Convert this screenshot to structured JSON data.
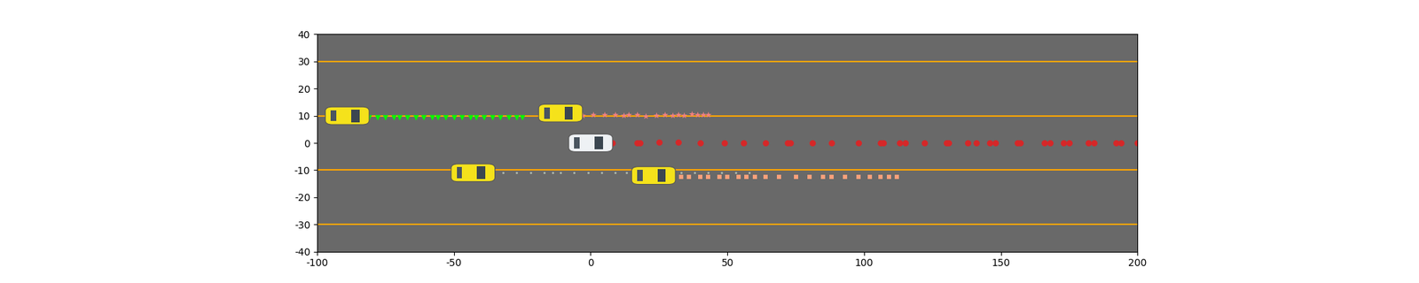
{
  "chart_data": {
    "type": "scatter",
    "xlim": [
      -100,
      200
    ],
    "ylim": [
      -40,
      40
    ],
    "xticks": [
      -100,
      -50,
      0,
      50,
      100,
      150,
      200
    ],
    "yticks": [
      -40,
      -30,
      -20,
      -10,
      0,
      10,
      20,
      30,
      40
    ],
    "lane_lines": [
      30,
      10,
      -10,
      -30
    ],
    "vehicles": [
      {
        "x": -89,
        "y": 10,
        "color": "#f5e21b"
      },
      {
        "x": -11,
        "y": 11,
        "color": "#f5e21b"
      },
      {
        "x": -43,
        "y": -11,
        "color": "#f5e21b"
      },
      {
        "x": 23,
        "y": -12,
        "color": "#f5e21b"
      },
      {
        "x": 0,
        "y": 0,
        "color": "#eef1f4"
      }
    ],
    "series": [
      {
        "color": "#00ff00",
        "marker": "v",
        "x": [
          -81,
          -78,
          -75,
          -72,
          -70,
          -67,
          -64,
          -61,
          -58,
          -56,
          -53,
          -50,
          -47,
          -44,
          -42,
          -39,
          -36,
          -33,
          -30,
          -27,
          -25
        ],
        "values": [
          9.5,
          9.5,
          9.5,
          9.5,
          9.5,
          9.5,
          9.5,
          9.5,
          9.5,
          9.5,
          9.5,
          9.5,
          9.5,
          9.5,
          9.5,
          9.5,
          9.5,
          9.5,
          9.5,
          9.5,
          9.5
        ]
      },
      {
        "color": "#f08080",
        "marker": "*",
        "x": [
          -3,
          1,
          5,
          9,
          12,
          14,
          17,
          20,
          24,
          27,
          30,
          32,
          34,
          37,
          39,
          41,
          43
        ],
        "values": [
          10.2,
          10.5,
          10.3,
          10.4,
          10.1,
          10.5,
          10.3,
          10.0,
          10.2,
          10.4,
          10.1,
          10.5,
          10.2,
          10.6,
          10.4,
          10.3,
          10.5
        ]
      },
      {
        "color": "#d62728",
        "marker": "o",
        "x": [
          8,
          17,
          18,
          25,
          32,
          40,
          49,
          56,
          64,
          72,
          73,
          81,
          88,
          98,
          106,
          107,
          113,
          115,
          122,
          130,
          131,
          138,
          141,
          146,
          148,
          156,
          157,
          166,
          168,
          173,
          175,
          182,
          184,
          192,
          194,
          200
        ],
        "values": [
          0,
          0,
          0,
          0.3,
          0.3,
          0,
          0,
          0,
          0,
          0,
          0,
          0,
          0,
          0,
          0,
          0,
          0,
          0,
          0,
          0,
          0,
          0,
          0,
          0,
          0,
          0,
          0,
          0,
          0,
          0,
          0,
          0,
          0,
          0,
          0,
          0
        ]
      },
      {
        "color": "#aab4aa",
        "marker": ".",
        "x": [
          -36,
          -32,
          -27,
          -22,
          -17,
          -14,
          -11,
          -6,
          -1,
          4,
          9,
          13,
          18,
          23,
          28,
          33,
          38,
          43,
          48,
          53,
          58
        ],
        "values": [
          -11,
          -11,
          -11,
          -11,
          -11,
          -11,
          -11,
          -11,
          -11,
          -11,
          -11,
          -11,
          -11,
          -11,
          -11,
          -11,
          -11,
          -11,
          -11,
          -11,
          -11
        ]
      },
      {
        "color": "#ffa07a",
        "marker": "s",
        "x": [
          33,
          36,
          40,
          43,
          47,
          50,
          54,
          57,
          60,
          64,
          69,
          75,
          80,
          85,
          88,
          93,
          98,
          102,
          106,
          109,
          112
        ],
        "values": [
          -12.5,
          -12.5,
          -12.5,
          -12.5,
          -12.5,
          -12.5,
          -12.5,
          -12.5,
          -12.5,
          -12.5,
          -12.5,
          -12.5,
          -12.5,
          -12.5,
          -12.5,
          -12.5,
          -12.5,
          -12.5,
          -12.5,
          -12.5,
          -12.5
        ]
      }
    ]
  }
}
